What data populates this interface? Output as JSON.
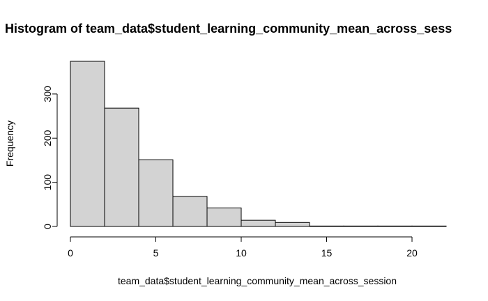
{
  "chart_data": {
    "type": "bar",
    "title": "Histogram of team_data$student_learning_community_mean_across_sess",
    "xlabel": "team_data$student_learning_community_mean_across_session",
    "ylabel": "Frequency",
    "bin_width": 2,
    "bins": [
      {
        "x0": 0,
        "x1": 2,
        "value": 374
      },
      {
        "x0": 2,
        "x1": 4,
        "value": 268
      },
      {
        "x0": 4,
        "x1": 6,
        "value": 151
      },
      {
        "x0": 6,
        "x1": 8,
        "value": 68
      },
      {
        "x0": 8,
        "x1": 10,
        "value": 42
      },
      {
        "x0": 10,
        "x1": 12,
        "value": 14
      },
      {
        "x0": 12,
        "x1": 14,
        "value": 9
      },
      {
        "x0": 14,
        "x1": 16,
        "value": 1
      },
      {
        "x0": 16,
        "x1": 18,
        "value": 1
      },
      {
        "x0": 18,
        "x1": 20,
        "value": 1
      },
      {
        "x0": 20,
        "x1": 22,
        "value": 1
      }
    ],
    "xlim": [
      0,
      22
    ],
    "ylim": [
      0,
      374
    ],
    "x_ticks": [
      0,
      5,
      10,
      15,
      20
    ],
    "x_tick_labels": [
      "0",
      "5",
      "10",
      "15",
      "20"
    ],
    "y_ticks": [
      0,
      100,
      200,
      300
    ],
    "y_tick_labels": [
      "0",
      "100",
      "200",
      "300"
    ],
    "bar_fill": "#d3d3d3",
    "bar_stroke": "#000000",
    "grid": false,
    "legend": "none"
  }
}
